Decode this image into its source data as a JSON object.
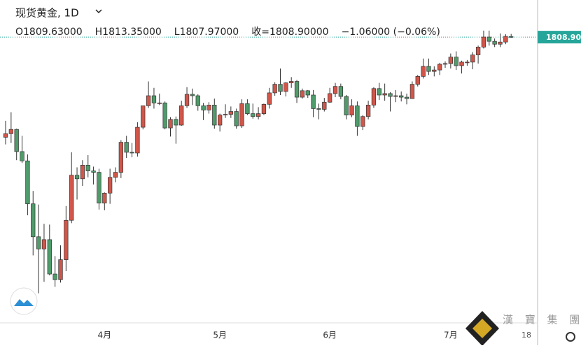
{
  "chart_data": {
    "type": "candlestick",
    "title": "现货黄金, 1D",
    "legend_items": [
      "O1809.63000",
      "H1813.35000",
      "L1807.97000",
      "收=1808.90000",
      "−1.06000 (−0.06%)"
    ],
    "up_color": "#d0564a",
    "down_color": "#4f9b6a",
    "categories": [
      null,
      null,
      null,
      null,
      null,
      null,
      null,
      null,
      null,
      null,
      null,
      null,
      null,
      null,
      null,
      null,
      null,
      null,
      "4月",
      null,
      null,
      null,
      null,
      null,
      null,
      null,
      null,
      null,
      null,
      null,
      null,
      null,
      null,
      null,
      null,
      null,
      null,
      null,
      null,
      "5月",
      null,
      null,
      null,
      null,
      null,
      null,
      null,
      null,
      null,
      null,
      null,
      null,
      null,
      null,
      null,
      null,
      null,
      null,
      null,
      "6月",
      null,
      null,
      null,
      null,
      null,
      null,
      null,
      null,
      null,
      null,
      null,
      null,
      null,
      null,
      null,
      null,
      null,
      null,
      null,
      null,
      null,
      "7月",
      null,
      null,
      null,
      null,
      null,
      null,
      null,
      null,
      null,
      null
    ],
    "values": [
      [
        1669,
        1692,
        1659,
        1674
      ],
      [
        1674,
        1704,
        1661,
        1680
      ],
      [
        1680,
        1681,
        1637,
        1649
      ],
      [
        1649,
        1671,
        1633,
        1636
      ],
      [
        1636,
        1645,
        1560,
        1576
      ],
      [
        1576,
        1594,
        1504,
        1530
      ],
      [
        1530,
        1575,
        1451,
        1513
      ],
      [
        1513,
        1548,
        1467,
        1526
      ],
      [
        1526,
        1547,
        1476,
        1478
      ],
      [
        1478,
        1503,
        1460,
        1470
      ],
      [
        1470,
        1518,
        1466,
        1498
      ],
      [
        1498,
        1573,
        1482,
        1553
      ],
      [
        1553,
        1648,
        1549,
        1616
      ],
      [
        1616,
        1627,
        1582,
        1611
      ],
      [
        1611,
        1637,
        1601,
        1630
      ],
      [
        1630,
        1644,
        1613,
        1622
      ],
      [
        1622,
        1628,
        1603,
        1620
      ],
      [
        1620,
        1625,
        1568,
        1577
      ],
      [
        1577,
        1592,
        1567,
        1591
      ],
      [
        1591,
        1625,
        1576,
        1613
      ],
      [
        1613,
        1627,
        1606,
        1620
      ],
      [
        1620,
        1665,
        1612,
        1662
      ],
      [
        1662,
        1671,
        1640,
        1648
      ],
      [
        1648,
        1661,
        1641,
        1647
      ],
      [
        1647,
        1690,
        1642,
        1683
      ],
      [
        1683,
        1713,
        1680,
        1713
      ],
      [
        1713,
        1747,
        1710,
        1727
      ],
      [
        1727,
        1738,
        1709,
        1717
      ],
      [
        1717,
        1730,
        1714,
        1717
      ],
      [
        1717,
        1719,
        1680,
        1682
      ],
      [
        1682,
        1697,
        1670,
        1694
      ],
      [
        1694,
        1698,
        1660,
        1686
      ],
      [
        1686,
        1720,
        1685,
        1713
      ],
      [
        1713,
        1739,
        1710,
        1729
      ],
      [
        1729,
        1737,
        1714,
        1727
      ],
      [
        1727,
        1729,
        1706,
        1713
      ],
      [
        1713,
        1717,
        1693,
        1707
      ],
      [
        1707,
        1718,
        1702,
        1714
      ],
      [
        1714,
        1723,
        1681,
        1686
      ],
      [
        1686,
        1702,
        1677,
        1700
      ],
      [
        1700,
        1715,
        1696,
        1701
      ],
      [
        1701,
        1712,
        1696,
        1705
      ],
      [
        1705,
        1709,
        1681,
        1685
      ],
      [
        1685,
        1722,
        1682,
        1716
      ],
      [
        1716,
        1722,
        1700,
        1702
      ],
      [
        1702,
        1716,
        1695,
        1698
      ],
      [
        1698,
        1711,
        1694,
        1702
      ],
      [
        1702,
        1716,
        1700,
        1715
      ],
      [
        1715,
        1738,
        1709,
        1731
      ],
      [
        1731,
        1746,
        1727,
        1743
      ],
      [
        1743,
        1765,
        1728,
        1733
      ],
      [
        1733,
        1746,
        1726,
        1745
      ],
      [
        1745,
        1753,
        1738,
        1747
      ],
      [
        1747,
        1749,
        1717,
        1725
      ],
      [
        1725,
        1737,
        1723,
        1734
      ],
      [
        1734,
        1735,
        1724,
        1728
      ],
      [
        1728,
        1735,
        1697,
        1709
      ],
      [
        1709,
        1716,
        1694,
        1708
      ],
      [
        1708,
        1724,
        1705,
        1718
      ],
      [
        1718,
        1738,
        1717,
        1730
      ],
      [
        1730,
        1745,
        1725,
        1740
      ],
      [
        1740,
        1744,
        1722,
        1726
      ],
      [
        1726,
        1728,
        1694,
        1700
      ],
      [
        1700,
        1722,
        1697,
        1713
      ],
      [
        1713,
        1719,
        1671,
        1684
      ],
      [
        1684,
        1700,
        1679,
        1698
      ],
      [
        1698,
        1720,
        1694,
        1714
      ],
      [
        1714,
        1739,
        1710,
        1737
      ],
      [
        1737,
        1745,
        1721,
        1728
      ],
      [
        1728,
        1744,
        1720,
        1730
      ],
      [
        1730,
        1732,
        1705,
        1726
      ],
      [
        1726,
        1735,
        1718,
        1727
      ],
      [
        1727,
        1733,
        1719,
        1725
      ],
      [
        1725,
        1730,
        1715,
        1723
      ],
      [
        1723,
        1747,
        1723,
        1743
      ],
      [
        1743,
        1756,
        1740,
        1754
      ],
      [
        1754,
        1779,
        1751,
        1768
      ],
      [
        1768,
        1779,
        1756,
        1761
      ],
      [
        1761,
        1768,
        1754,
        1763
      ],
      [
        1763,
        1773,
        1756,
        1771
      ],
      [
        1771,
        1775,
        1766,
        1772
      ],
      [
        1772,
        1786,
        1765,
        1781
      ],
      [
        1781,
        1789,
        1763,
        1769
      ],
      [
        1769,
        1776,
        1758,
        1774
      ],
      [
        1774,
        1777,
        1769,
        1774
      ],
      [
        1774,
        1788,
        1764,
        1784
      ],
      [
        1784,
        1797,
        1772,
        1795
      ],
      [
        1795,
        1818,
        1793,
        1809
      ],
      [
        1809,
        1818,
        1797,
        1803
      ],
      [
        1803,
        1807,
        1795,
        1799
      ],
      [
        1799,
        1814,
        1795,
        1802
      ],
      [
        1802,
        1813,
        1799,
        1810
      ],
      [
        1809.63,
        1813.35,
        1807.97,
        1808.9
      ]
    ],
    "ylim": [
      1440,
      1830
    ],
    "yticks": [
      {
        "value": 1808.9,
        "label": "1808.900"
      }
    ],
    "price_line_color": "#26a69a"
  },
  "ui": {
    "time_label": "18",
    "watermark": "漢 寶 集 團"
  }
}
